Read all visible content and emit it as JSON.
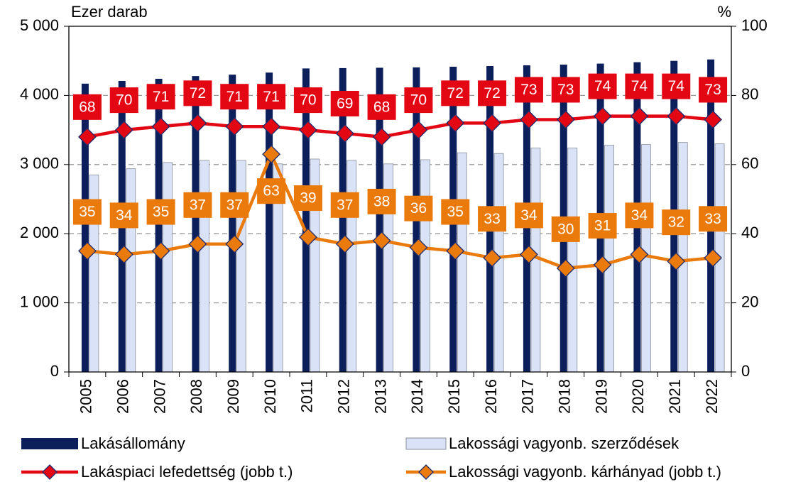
{
  "chart_data": {
    "type": "bar-line",
    "y_label": "Ezer darab",
    "y2_label": "%",
    "categories": [
      "2005",
      "2006",
      "2007",
      "2008",
      "2009",
      "2010",
      "2011",
      "2012",
      "2013",
      "2014",
      "2015",
      "2016",
      "2017",
      "2018",
      "2019",
      "2020",
      "2021",
      "2022"
    ],
    "series": [
      {
        "name": "Lakásállomány",
        "type": "bar",
        "color": "#0c1f5b",
        "values": [
          4170,
          4210,
          4240,
          4280,
          4300,
          4330,
          4390,
          4395,
          4400,
          4405,
          4415,
          4425,
          4435,
          4445,
          4460,
          4480,
          4500,
          4520
        ]
      },
      {
        "name": "Lakossági vagyonb. szerződések",
        "type": "bar",
        "color": "#d9e2f6",
        "values": [
          2850,
          2940,
          3030,
          3060,
          3060,
          3010,
          3080,
          3060,
          3010,
          3070,
          3170,
          3160,
          3240,
          3240,
          3280,
          3290,
          3320,
          3300
        ]
      },
      {
        "name": "Lakáspiaci lefedettség (jobb t.)",
        "type": "line",
        "axis": "y2",
        "color": "#e30613",
        "values": [
          68,
          70,
          71,
          72,
          71,
          71,
          70,
          69,
          68,
          70,
          72,
          72,
          73,
          73,
          74,
          74,
          74,
          73
        ]
      },
      {
        "name": "Lakossági vagyonb. kárhányad (jobb t.)",
        "type": "line",
        "axis": "y2",
        "color": "#ea7a0b",
        "values": [
          35,
          34,
          35,
          37,
          37,
          63,
          39,
          37,
          38,
          36,
          35,
          33,
          34,
          30,
          31,
          34,
          32,
          33
        ]
      }
    ],
    "ylim": [
      0,
      5000
    ],
    "yticks": [
      {
        "value": 0,
        "label": "0"
      },
      {
        "value": 1000,
        "label": "1 000"
      },
      {
        "value": 2000,
        "label": "2 000"
      },
      {
        "value": 3000,
        "label": "3 000"
      },
      {
        "value": 4000,
        "label": "4 000"
      },
      {
        "value": 5000,
        "label": "5 000"
      }
    ],
    "y2lim": [
      0,
      100
    ],
    "y2ticks": [
      0,
      20,
      40,
      60,
      80,
      100
    ],
    "grid": true
  }
}
